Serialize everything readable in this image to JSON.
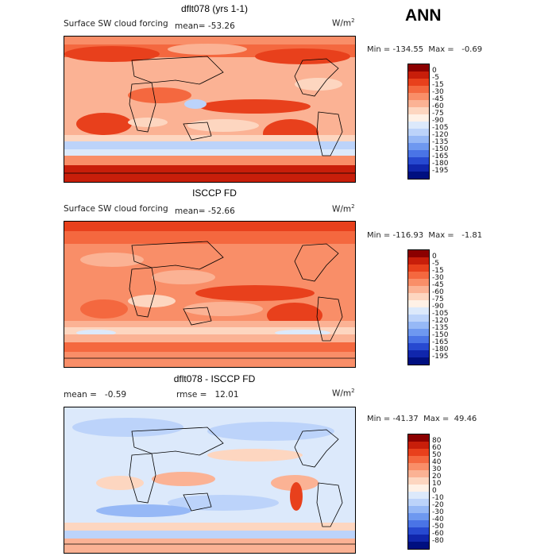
{
  "season": "ANN",
  "panels": [
    {
      "title": "dflt078 (yrs 1-1)",
      "variable": "Surface SW cloud forcing",
      "stat": "mean= -53.26",
      "units": "W/m",
      "units_exp": "2",
      "minmax": "Min = -134.55  Max =   -0.69",
      "colorbar": {
        "labels": [
          "0",
          "-5",
          "-15",
          "-30",
          "-45",
          "-60",
          "-75",
          "-90",
          "-105",
          "-120",
          "-135",
          "-150",
          "-165",
          "-180",
          "-195"
        ],
        "colors": [
          "#8b0000",
          "#c81e0a",
          "#e8401c",
          "#f4683f",
          "#f98e68",
          "#fbb294",
          "#fdd6c0",
          "#fff1e6",
          "#dce9fb",
          "#bcd3fa",
          "#96b8f6",
          "#6e98f0",
          "#4a74e6",
          "#2749d0",
          "#1026ac",
          "#000f80"
        ]
      }
    },
    {
      "title": "ISCCP FD",
      "variable": "Surface SW cloud forcing",
      "stat": "mean= -52.66",
      "units": "W/m",
      "units_exp": "2",
      "minmax": "Min = -116.93  Max =   -1.81",
      "colorbar": {
        "labels": [
          "0",
          "-5",
          "-15",
          "-30",
          "-45",
          "-60",
          "-75",
          "-90",
          "-105",
          "-120",
          "-135",
          "-150",
          "-165",
          "-180",
          "-195"
        ],
        "colors": [
          "#8b0000",
          "#c81e0a",
          "#e8401c",
          "#f4683f",
          "#f98e68",
          "#fbb294",
          "#fdd6c0",
          "#fff1e6",
          "#dce9fb",
          "#bcd3fa",
          "#96b8f6",
          "#6e98f0",
          "#4a74e6",
          "#2749d0",
          "#1026ac",
          "#000f80"
        ]
      }
    },
    {
      "title": "dflt078 - ISCCP FD",
      "stat": "mean =   -0.59",
      "rmse": "rmse =   12.01",
      "units": "W/m",
      "units_exp": "2",
      "minmax": "Min = -41.37  Max =  49.46",
      "colorbar": {
        "labels": [
          "80",
          "60",
          "50",
          "40",
          "30",
          "20",
          "10",
          "0",
          "-10",
          "-20",
          "-30",
          "-40",
          "-50",
          "-60",
          "-80"
        ],
        "colors": [
          "#8b0000",
          "#c81e0a",
          "#e8401c",
          "#f4683f",
          "#f98e68",
          "#fbb294",
          "#fdd6c0",
          "#fff1e6",
          "#dce9fb",
          "#bcd3fa",
          "#96b8f6",
          "#6e98f0",
          "#4a74e6",
          "#2749d0",
          "#1026ac",
          "#000f80"
        ]
      }
    }
  ]
}
